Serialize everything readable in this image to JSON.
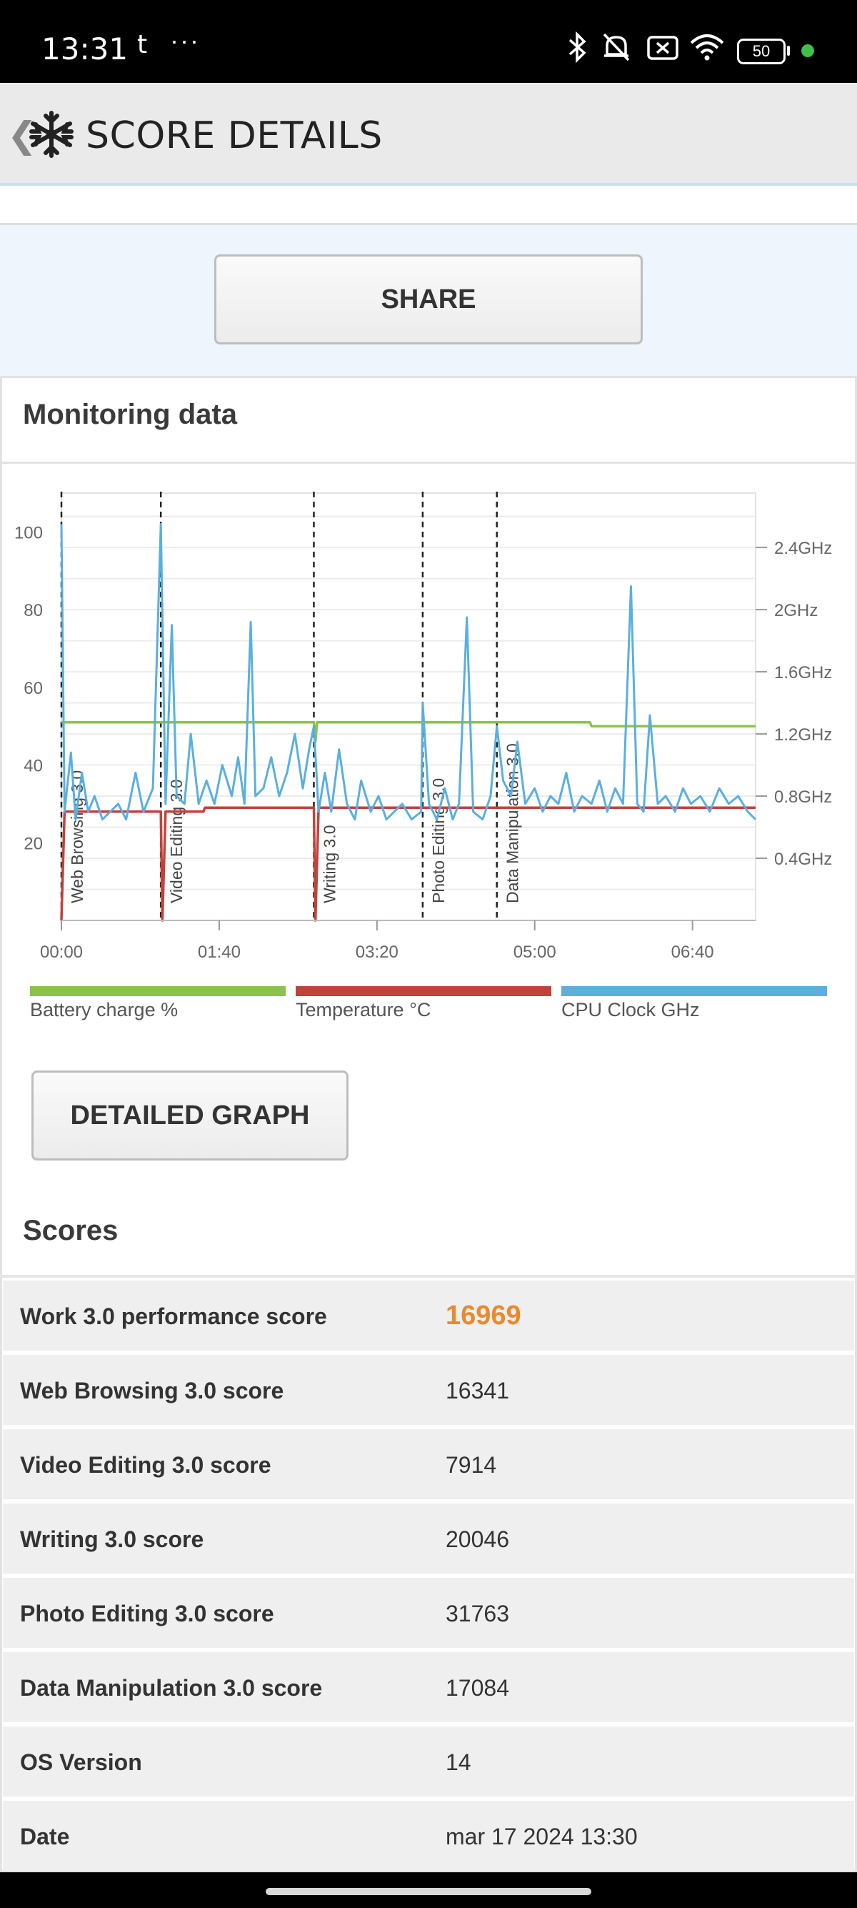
{
  "status_bar": {
    "time": "13:31",
    "app_glyph": "t",
    "more": "···",
    "battery_level": "50",
    "icons": [
      "bluetooth-icon",
      "mute-icon",
      "screen-off-icon",
      "wifi-icon",
      "battery-icon"
    ]
  },
  "header": {
    "back_glyph": "❮",
    "title": "SCORE DETAILS",
    "logo": "snowflake-logo"
  },
  "share_button": "SHARE",
  "monitoring": {
    "title": "Monitoring data",
    "detailed_graph_button": "DETAILED GRAPH",
    "legend": [
      {
        "label": "Battery charge %",
        "color": "#8bc34a"
      },
      {
        "label": "Temperature °C",
        "color": "#c0433b"
      },
      {
        "label": "CPU Clock GHz",
        "color": "#5aafdf"
      }
    ]
  },
  "chart_data": {
    "type": "line",
    "x_unit": "mm:ss",
    "x_ticks": [
      "00:00",
      "01:40",
      "03:20",
      "05:00",
      "06:40"
    ],
    "x_range": [
      "00:00",
      "07:20"
    ],
    "y_left_ticks": [
      "20",
      "40",
      "60",
      "80",
      "100"
    ],
    "y_left_range": [
      0,
      110
    ],
    "y_right_ticks": [
      "0.4GHz",
      "0.8GHz",
      "1.2GHz",
      "1.6GHz",
      "2GHz",
      "2.4GHz"
    ],
    "y_right_range": [
      0,
      2.75
    ],
    "grid": true,
    "phase_markers": [
      {
        "label": "Web Browsing 3.0",
        "t": "00:00"
      },
      {
        "label": "Video Editing 3.0",
        "t": "01:03"
      },
      {
        "label": "Writing 3.0",
        "t": "02:40"
      },
      {
        "label": "Photo Editing 3.0",
        "t": "03:49"
      },
      {
        "label": "Data Manipulation 3.0",
        "t": "04:36"
      }
    ],
    "series": [
      {
        "name": "Battery charge %",
        "axis": "left",
        "color": "#8bc34a",
        "points": [
          [
            "00:00",
            51
          ],
          [
            "01:03",
            51
          ],
          [
            "02:40",
            51
          ],
          [
            "02:41",
            46
          ],
          [
            "02:42",
            51
          ],
          [
            "05:35",
            51
          ],
          [
            "05:36",
            50
          ],
          [
            "07:20",
            50
          ]
        ]
      },
      {
        "name": "Temperature °C",
        "axis": "left",
        "color": "#c0433b",
        "points": [
          [
            "00:00",
            0
          ],
          [
            "00:02",
            28
          ],
          [
            "01:03",
            28
          ],
          [
            "01:04",
            0
          ],
          [
            "01:06",
            28
          ],
          [
            "01:30",
            28
          ],
          [
            "01:31",
            29
          ],
          [
            "02:40",
            29
          ],
          [
            "02:41",
            0
          ],
          [
            "02:43",
            29
          ],
          [
            "07:20",
            29
          ]
        ]
      },
      {
        "name": "CPU Clock GHz",
        "axis": "right",
        "color": "#5aafdf",
        "points": [
          [
            "00:00",
            2.55
          ],
          [
            "00:02",
            0.7
          ],
          [
            "00:06",
            1.08
          ],
          [
            "00:09",
            0.65
          ],
          [
            "00:13",
            0.95
          ],
          [
            "00:17",
            0.7
          ],
          [
            "00:21",
            0.8
          ],
          [
            "00:26",
            0.65
          ],
          [
            "00:31",
            0.7
          ],
          [
            "00:36",
            0.75
          ],
          [
            "00:41",
            0.65
          ],
          [
            "00:47",
            0.95
          ],
          [
            "00:52",
            0.7
          ],
          [
            "00:58",
            0.85
          ],
          [
            "01:03",
            2.55
          ],
          [
            "01:06",
            0.75
          ],
          [
            "01:10",
            1.9
          ],
          [
            "01:13",
            0.8
          ],
          [
            "01:18",
            0.75
          ],
          [
            "01:22",
            1.2
          ],
          [
            "01:27",
            0.75
          ],
          [
            "01:32",
            0.9
          ],
          [
            "01:37",
            0.75
          ],
          [
            "01:42",
            1.0
          ],
          [
            "01:48",
            0.8
          ],
          [
            "01:52",
            1.05
          ],
          [
            "01:56",
            0.75
          ],
          [
            "02:00",
            1.92
          ],
          [
            "02:03",
            0.8
          ],
          [
            "02:08",
            0.85
          ],
          [
            "02:13",
            1.05
          ],
          [
            "02:18",
            0.8
          ],
          [
            "02:23",
            0.95
          ],
          [
            "02:28",
            1.2
          ],
          [
            "02:33",
            0.85
          ],
          [
            "02:37",
            1.1
          ],
          [
            "02:40",
            1.25
          ],
          [
            "02:43",
            0.7
          ],
          [
            "02:47",
            0.95
          ],
          [
            "02:51",
            0.7
          ],
          [
            "02:56",
            1.1
          ],
          [
            "03:01",
            0.75
          ],
          [
            "03:06",
            0.65
          ],
          [
            "03:10",
            0.9
          ],
          [
            "03:16",
            0.7
          ],
          [
            "03:21",
            0.8
          ],
          [
            "03:26",
            0.65
          ],
          [
            "03:31",
            0.7
          ],
          [
            "03:36",
            0.75
          ],
          [
            "03:42",
            0.65
          ],
          [
            "03:48",
            0.7
          ],
          [
            "03:49",
            1.4
          ],
          [
            "03:53",
            0.75
          ],
          [
            "03:58",
            0.65
          ],
          [
            "04:03",
            0.85
          ],
          [
            "04:08",
            0.65
          ],
          [
            "04:12",
            0.75
          ],
          [
            "04:17",
            1.95
          ],
          [
            "04:21",
            0.7
          ],
          [
            "04:27",
            0.65
          ],
          [
            "04:32",
            0.8
          ],
          [
            "04:36",
            1.25
          ],
          [
            "04:40",
            0.9
          ],
          [
            "04:45",
            0.8
          ],
          [
            "04:49",
            1.15
          ],
          [
            "04:54",
            0.75
          ],
          [
            "05:00",
            0.85
          ],
          [
            "05:05",
            0.7
          ],
          [
            "05:10",
            0.8
          ],
          [
            "05:15",
            0.75
          ],
          [
            "05:20",
            0.95
          ],
          [
            "05:25",
            0.7
          ],
          [
            "05:30",
            0.8
          ],
          [
            "05:36",
            0.75
          ],
          [
            "05:41",
            0.9
          ],
          [
            "05:46",
            0.7
          ],
          [
            "05:51",
            0.85
          ],
          [
            "05:56",
            0.75
          ],
          [
            "06:01",
            2.15
          ],
          [
            "06:05",
            0.75
          ],
          [
            "06:09",
            0.7
          ],
          [
            "06:13",
            1.32
          ],
          [
            "06:18",
            0.75
          ],
          [
            "06:23",
            0.8
          ],
          [
            "06:29",
            0.7
          ],
          [
            "06:34",
            0.85
          ],
          [
            "06:39",
            0.75
          ],
          [
            "06:45",
            0.8
          ],
          [
            "06:51",
            0.7
          ],
          [
            "06:57",
            0.85
          ],
          [
            "07:03",
            0.75
          ],
          [
            "07:09",
            0.8
          ],
          [
            "07:15",
            0.7
          ],
          [
            "07:20",
            0.65
          ]
        ]
      }
    ]
  },
  "scores": {
    "title": "Scores",
    "rows": [
      {
        "label": "Work 3.0 performance score",
        "value": "16969"
      },
      {
        "label": "Web Browsing 3.0 score",
        "value": "16341"
      },
      {
        "label": "Video Editing 3.0 score",
        "value": "7914"
      },
      {
        "label": "Writing 3.0 score",
        "value": "20046"
      },
      {
        "label": "Photo Editing 3.0 score",
        "value": "31763"
      },
      {
        "label": "Data Manipulation 3.0 score",
        "value": "17084"
      },
      {
        "label": "OS Version",
        "value": "14"
      },
      {
        "label": "Date",
        "value": "mar 17 2024 13:30"
      }
    ]
  }
}
